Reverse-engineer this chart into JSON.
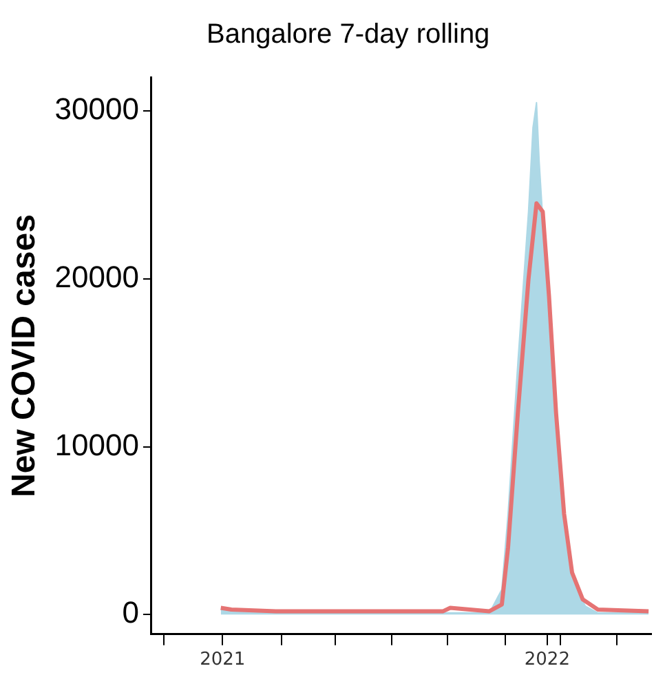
{
  "chart_data": {
    "type": "line",
    "title": "Bangalore 7-day rolling",
    "ylabel": "New COVID cases",
    "series": [
      {
        "type": "area",
        "color": "#add8e6",
        "x": [
          "2020-12-30",
          "2021-01-11",
          "2021-05-31",
          "2021-10-28",
          "2021-11-11",
          "2021-11-18",
          "2021-11-29",
          "2021-12-11",
          "2021-12-16",
          "2021-12-20",
          "2021-12-23",
          "2021-12-30",
          "2022-01-06",
          "2022-01-15",
          "2022-01-24",
          "2022-02-03",
          "2022-02-13",
          "2022-02-27",
          "2022-04-25"
        ],
        "values": [
          300,
          200,
          100,
          100,
          1500,
          6000,
          15000,
          24000,
          29000,
          30500,
          27000,
          21000,
          14000,
          8000,
          4000,
          1500,
          500,
          100,
          100
        ]
      },
      {
        "type": "line",
        "color": "#e57373",
        "x": [
          "2020-12-30",
          "2021-01-11",
          "2021-03-02",
          "2021-05-31",
          "2021-09-06",
          "2021-09-14",
          "2021-10-28",
          "2021-11-11",
          "2021-11-18",
          "2021-11-29",
          "2021-12-11",
          "2021-12-20",
          "2021-12-27",
          "2022-01-03",
          "2022-01-11",
          "2022-01-20",
          "2022-01-29",
          "2022-02-10",
          "2022-02-27",
          "2022-04-25"
        ],
        "values": [
          400,
          300,
          200,
          200,
          200,
          400,
          200,
          600,
          4000,
          12000,
          20000,
          24500,
          24000,
          19000,
          12000,
          6000,
          2500,
          900,
          300,
          200
        ]
      }
    ],
    "xlim": [
      "2020-10-13",
      "2022-04-28"
    ],
    "xticks": [
      {
        "value": "2020-10-27",
        "label": null
      },
      {
        "value": "2021-01-01",
        "label": "2021"
      },
      {
        "value": "2021-03-08",
        "label": null
      },
      {
        "value": "2021-05-08",
        "label": null
      },
      {
        "value": "2021-07-10",
        "label": null
      },
      {
        "value": "2021-09-11",
        "label": null
      },
      {
        "value": "2021-11-15",
        "label": null
      },
      {
        "value": "2022-01-01",
        "label": "2022"
      },
      {
        "value": "2022-01-16",
        "label": null
      },
      {
        "value": "2022-03-20",
        "label": null
      }
    ],
    "ylim": [
      -1170,
      32000
    ],
    "yticks": [
      0,
      10000,
      20000,
      30000
    ],
    "grid": false,
    "legend": false,
    "marker": "none",
    "line_style": "solid"
  }
}
